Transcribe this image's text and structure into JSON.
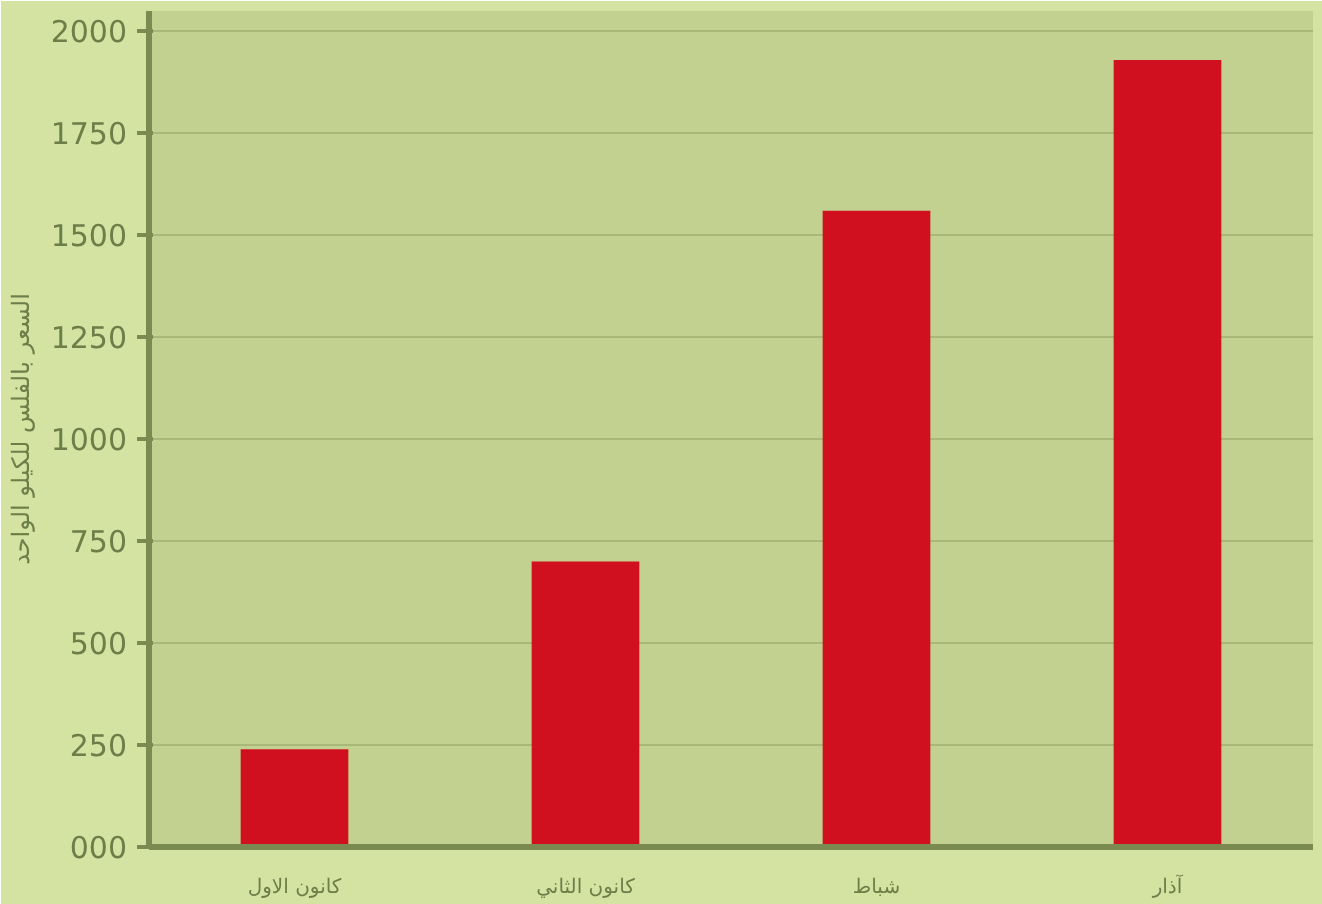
{
  "chart_data": {
    "type": "bar",
    "ylabel": "السعر بالفلس للكيلو الواحد",
    "categories": [
      "كانون الاول",
      "كانون الثاني",
      "شباط",
      "آذار"
    ],
    "values": [
      240,
      700,
      1560,
      1930
    ],
    "color": "#d0101e",
    "ylim": [
      0,
      2050
    ],
    "yticks": [
      {
        "value": 0,
        "label": "000"
      },
      250,
      500,
      750,
      1000,
      1250,
      1500,
      1750,
      2000
    ],
    "grid": "y"
  }
}
